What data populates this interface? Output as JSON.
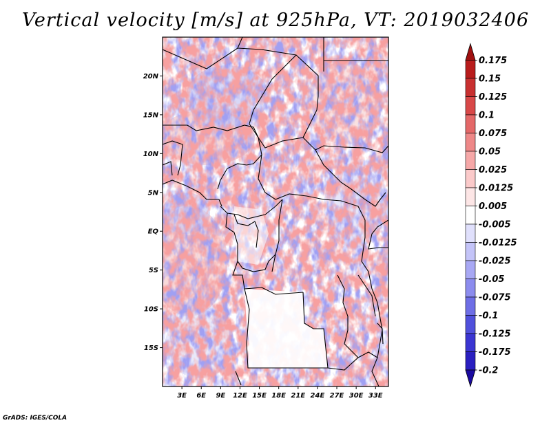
{
  "title": "Vertical velocity [m/s] at 925hPa, VT: 2019032406",
  "footer": "GrADS: IGES/COLA",
  "map": {
    "lon_range": [
      0,
      35
    ],
    "lat_range": [
      -20,
      25
    ],
    "lat_ticks": [
      {
        "value": 20,
        "label": "20N"
      },
      {
        "value": 15,
        "label": "15N"
      },
      {
        "value": 10,
        "label": "10N"
      },
      {
        "value": 5,
        "label": "5N"
      },
      {
        "value": 0,
        "label": "EQ"
      },
      {
        "value": -5,
        "label": "5S"
      },
      {
        "value": -10,
        "label": "10S"
      },
      {
        "value": -15,
        "label": "15S"
      }
    ],
    "lon_ticks": [
      {
        "value": 3,
        "label": "3E"
      },
      {
        "value": 6,
        "label": "6E"
      },
      {
        "value": 9,
        "label": "9E"
      },
      {
        "value": 12,
        "label": "12E"
      },
      {
        "value": 15,
        "label": "15E"
      },
      {
        "value": 18,
        "label": "18E"
      },
      {
        "value": 21,
        "label": "21E"
      },
      {
        "value": 24,
        "label": "24E"
      },
      {
        "value": 27,
        "label": "27E"
      },
      {
        "value": 30,
        "label": "30E"
      },
      {
        "value": 33,
        "label": "33E"
      }
    ]
  },
  "colorbar": {
    "colors": [
      "#1a0aa0",
      "#2a1fc0",
      "#3b35d2",
      "#5050dc",
      "#6e6ee6",
      "#8c8cee",
      "#a8a8f4",
      "#c4c4f8",
      "#e0e0fc",
      "#ffffff",
      "#fde6e6",
      "#fbcaca",
      "#f6a8a8",
      "#ee8888",
      "#e46868",
      "#d84848",
      "#c83030",
      "#b81c1c",
      "#a01010"
    ],
    "labels": [
      "0.175",
      "0.15",
      "0.125",
      "0.1",
      "0.075",
      "0.05",
      "0.025",
      "0.0125",
      "0.005",
      "-0.005",
      "-0.0125",
      "-0.025",
      "-0.05",
      "-0.075",
      "-0.1",
      "-0.125",
      "-0.175",
      "-0.2"
    ]
  }
}
